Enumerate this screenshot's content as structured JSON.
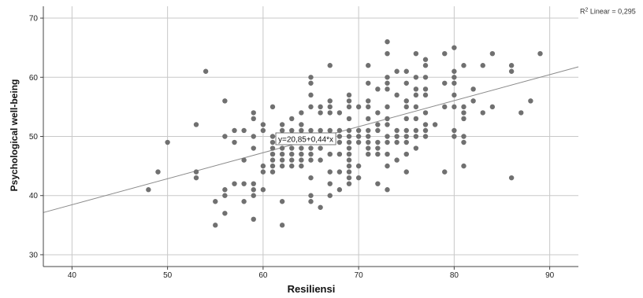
{
  "chart_data": {
    "type": "scatter",
    "xlabel": "Resiliensi",
    "ylabel": "Psychological well-being",
    "xlim": [
      37,
      93
    ],
    "ylim": [
      28,
      72
    ],
    "xticks": [
      40,
      50,
      60,
      70,
      80,
      90
    ],
    "yticks": [
      30,
      40,
      50,
      60,
      70
    ],
    "grid": true,
    "colors": {
      "points": "#707070",
      "line": "#8a8a8a",
      "grid": "#c8c8c8",
      "frame": "#444444"
    },
    "fit_line": {
      "intercept": 20.85,
      "slope": 0.44,
      "label": "y=20,85+0,44*x"
    },
    "r2_label": {
      "prefix": "R",
      "sup": "2",
      "rest": " Linear = 0,295"
    },
    "points": [
      [
        48,
        41
      ],
      [
        49,
        44
      ],
      [
        50,
        49
      ],
      [
        53,
        52
      ],
      [
        53,
        44
      ],
      [
        53,
        43
      ],
      [
        54,
        61
      ],
      [
        55,
        39
      ],
      [
        55,
        35
      ],
      [
        56,
        56
      ],
      [
        56,
        50
      ],
      [
        56,
        41
      ],
      [
        56,
        40
      ],
      [
        56,
        37
      ],
      [
        57,
        51
      ],
      [
        57,
        49
      ],
      [
        57,
        42
      ],
      [
        58,
        51
      ],
      [
        58,
        46
      ],
      [
        58,
        42
      ],
      [
        58,
        39
      ],
      [
        59,
        54
      ],
      [
        59,
        53
      ],
      [
        59,
        50
      ],
      [
        59,
        48
      ],
      [
        59,
        42
      ],
      [
        59,
        41
      ],
      [
        59,
        40
      ],
      [
        59,
        36
      ],
      [
        60,
        52
      ],
      [
        60,
        51
      ],
      [
        60,
        45
      ],
      [
        60,
        44
      ],
      [
        60,
        41
      ],
      [
        61,
        55
      ],
      [
        61,
        50
      ],
      [
        61,
        49
      ],
      [
        61,
        48
      ],
      [
        61,
        47
      ],
      [
        61,
        46
      ],
      [
        61,
        45
      ],
      [
        61,
        44
      ],
      [
        62,
        52
      ],
      [
        62,
        51
      ],
      [
        62,
        50
      ],
      [
        62,
        49
      ],
      [
        62,
        48
      ],
      [
        62,
        47
      ],
      [
        62,
        46
      ],
      [
        62,
        45
      ],
      [
        62,
        39
      ],
      [
        62,
        35
      ],
      [
        63,
        53
      ],
      [
        63,
        51
      ],
      [
        63,
        49
      ],
      [
        63,
        48
      ],
      [
        63,
        47
      ],
      [
        63,
        46
      ],
      [
        63,
        45
      ],
      [
        64,
        54
      ],
      [
        64,
        52
      ],
      [
        64,
        51
      ],
      [
        64,
        50
      ],
      [
        64,
        49
      ],
      [
        64,
        48
      ],
      [
        64,
        47
      ],
      [
        64,
        46
      ],
      [
        64,
        45
      ],
      [
        65,
        60
      ],
      [
        65,
        59
      ],
      [
        65,
        57
      ],
      [
        65,
        55
      ],
      [
        65,
        51
      ],
      [
        65,
        49
      ],
      [
        65,
        48
      ],
      [
        65,
        47
      ],
      [
        65,
        46
      ],
      [
        65,
        43
      ],
      [
        65,
        40
      ],
      [
        65,
        39
      ],
      [
        66,
        55
      ],
      [
        66,
        54
      ],
      [
        66,
        51
      ],
      [
        66,
        49
      ],
      [
        66,
        48
      ],
      [
        66,
        46
      ],
      [
        66,
        38
      ],
      [
        67,
        62
      ],
      [
        67,
        56
      ],
      [
        67,
        55
      ],
      [
        67,
        54
      ],
      [
        67,
        51
      ],
      [
        67,
        50
      ],
      [
        67,
        49
      ],
      [
        67,
        47
      ],
      [
        67,
        44
      ],
      [
        67,
        42
      ],
      [
        67,
        40
      ],
      [
        68,
        54
      ],
      [
        68,
        51
      ],
      [
        68,
        50
      ],
      [
        68,
        49
      ],
      [
        68,
        47
      ],
      [
        68,
        44
      ],
      [
        68,
        41
      ],
      [
        69,
        57
      ],
      [
        69,
        56
      ],
      [
        69,
        55
      ],
      [
        69,
        53
      ],
      [
        69,
        51
      ],
      [
        69,
        50
      ],
      [
        69,
        49
      ],
      [
        69,
        48
      ],
      [
        69,
        47
      ],
      [
        69,
        46
      ],
      [
        69,
        45
      ],
      [
        69,
        44
      ],
      [
        69,
        43
      ],
      [
        69,
        42
      ],
      [
        70,
        55
      ],
      [
        70,
        51
      ],
      [
        70,
        50
      ],
      [
        70,
        49
      ],
      [
        70,
        45
      ],
      [
        70,
        43
      ],
      [
        71,
        62
      ],
      [
        71,
        59
      ],
      [
        71,
        56
      ],
      [
        71,
        55
      ],
      [
        71,
        53
      ],
      [
        71,
        51
      ],
      [
        71,
        50
      ],
      [
        71,
        49
      ],
      [
        71,
        48
      ],
      [
        71,
        47
      ],
      [
        72,
        58
      ],
      [
        72,
        54
      ],
      [
        72,
        52
      ],
      [
        72,
        51
      ],
      [
        72,
        49
      ],
      [
        72,
        48
      ],
      [
        72,
        47
      ],
      [
        72,
        42
      ],
      [
        73,
        66
      ],
      [
        73,
        64
      ],
      [
        73,
        60
      ],
      [
        73,
        59
      ],
      [
        73,
        58
      ],
      [
        73,
        55
      ],
      [
        73,
        53
      ],
      [
        73,
        52
      ],
      [
        73,
        50
      ],
      [
        73,
        49
      ],
      [
        73,
        47
      ],
      [
        73,
        45
      ],
      [
        73,
        41
      ],
      [
        74,
        61
      ],
      [
        74,
        57
      ],
      [
        74,
        51
      ],
      [
        74,
        50
      ],
      [
        74,
        49
      ],
      [
        74,
        46
      ],
      [
        75,
        61
      ],
      [
        75,
        59
      ],
      [
        75,
        56
      ],
      [
        75,
        55
      ],
      [
        75,
        53
      ],
      [
        75,
        51
      ],
      [
        75,
        50
      ],
      [
        75,
        49
      ],
      [
        75,
        47
      ],
      [
        75,
        44
      ],
      [
        76,
        64
      ],
      [
        76,
        60
      ],
      [
        76,
        58
      ],
      [
        76,
        57
      ],
      [
        76,
        55
      ],
      [
        76,
        53
      ],
      [
        76,
        51
      ],
      [
        76,
        50
      ],
      [
        76,
        48
      ],
      [
        77,
        63
      ],
      [
        77,
        62
      ],
      [
        77,
        60
      ],
      [
        77,
        58
      ],
      [
        77,
        57
      ],
      [
        77,
        54
      ],
      [
        77,
        52
      ],
      [
        77,
        51
      ],
      [
        77,
        50
      ],
      [
        78,
        52
      ],
      [
        79,
        64
      ],
      [
        79,
        59
      ],
      [
        79,
        55
      ],
      [
        79,
        44
      ],
      [
        80,
        65
      ],
      [
        80,
        61
      ],
      [
        80,
        60
      ],
      [
        80,
        59
      ],
      [
        80,
        57
      ],
      [
        80,
        55
      ],
      [
        80,
        51
      ],
      [
        80,
        50
      ],
      [
        81,
        62
      ],
      [
        81,
        55
      ],
      [
        81,
        54
      ],
      [
        81,
        53
      ],
      [
        81,
        50
      ],
      [
        81,
        49
      ],
      [
        81,
        45
      ],
      [
        82,
        58
      ],
      [
        82,
        56
      ],
      [
        83,
        62
      ],
      [
        83,
        54
      ],
      [
        84,
        64
      ],
      [
        84,
        55
      ],
      [
        86,
        62
      ],
      [
        86,
        61
      ],
      [
        86,
        43
      ],
      [
        87,
        54
      ],
      [
        88,
        56
      ],
      [
        89,
        64
      ]
    ]
  }
}
